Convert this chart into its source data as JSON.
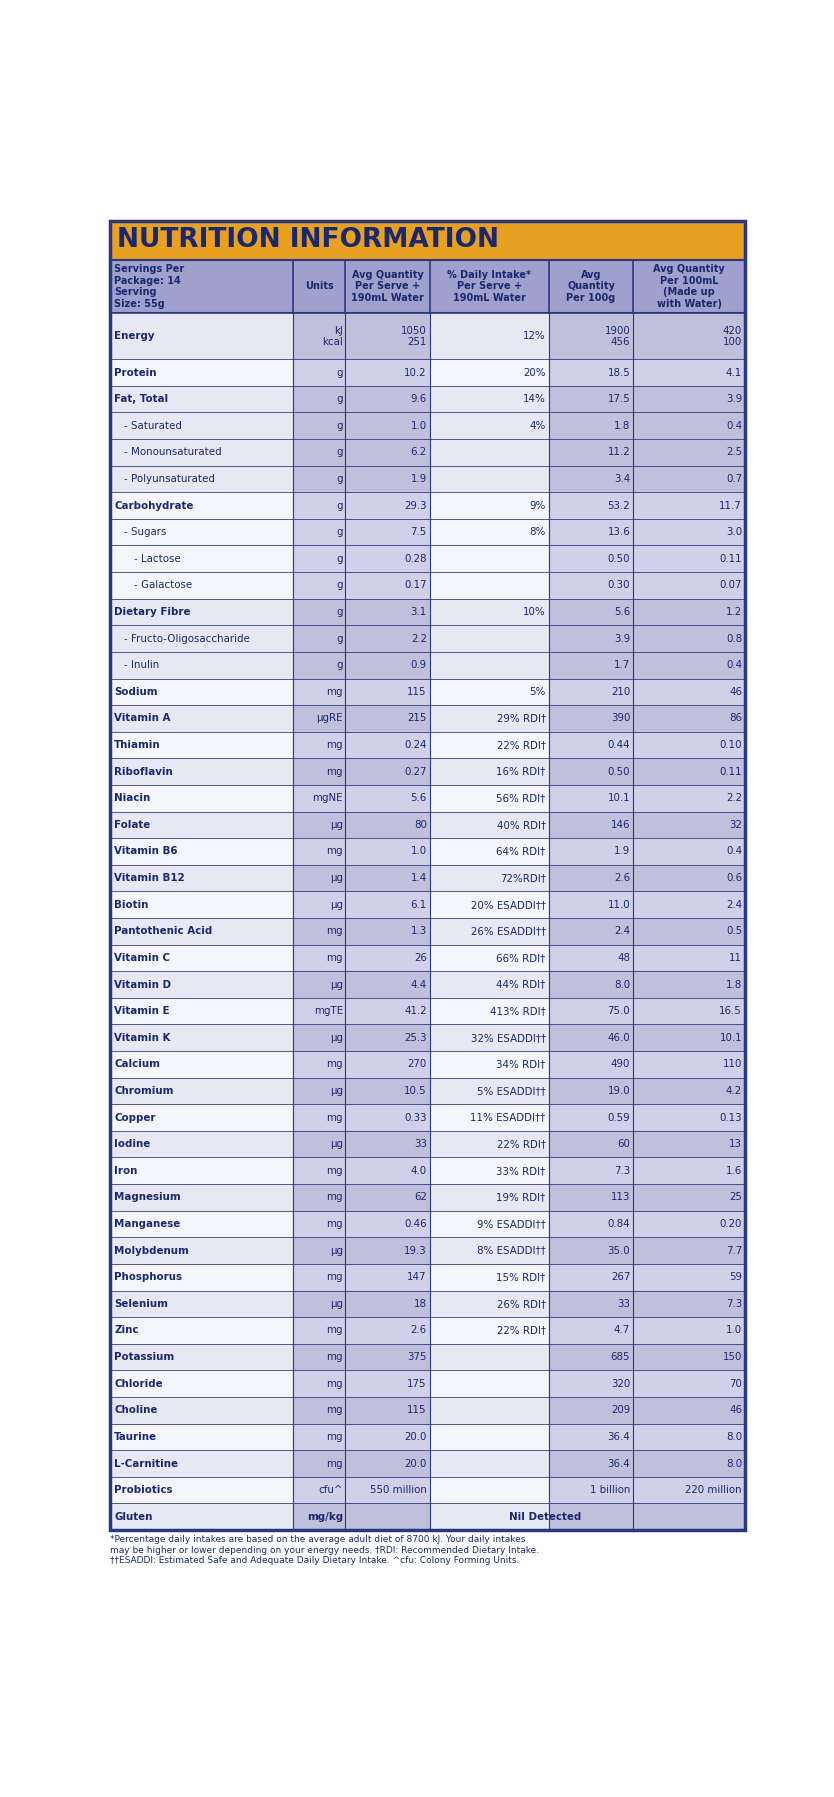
{
  "title": "NUTRITION INFORMATION",
  "title_bg": "#E8A020",
  "title_color": "#1a2870",
  "header_bg": "#a0a0cc",
  "row_bg_light": "#eeeef5",
  "row_bg_white": "#f8f8ff",
  "col_dark_light": "#b0b0d8",
  "col_dark_white": "#c8c8e8",
  "text_color": "#1a2870",
  "border_color": "#2a3880",
  "serving_info": "Servings Per\nPackage: 14\nServing\nSize: 55g",
  "col_headers": [
    "",
    "Units",
    "Avg Quantity\nPer Serve +\n190mL Water",
    "% Daily Intake*\nPer Serve +\n190mL Water",
    "Avg\nQuantity\nPer 100g",
    "Avg Quantity\nPer 100mL\n(Made up\nwith Water)"
  ],
  "rows": [
    {
      "name": "Energy",
      "indent": 0,
      "unit": "kJ\nkcal",
      "qty": "1050\n251",
      "pct": "12%",
      "per100": "1900\n456",
      "per100ml": "420\n100",
      "double": true,
      "group": 0
    },
    {
      "name": "Protein",
      "indent": 0,
      "unit": "g",
      "qty": "10.2",
      "pct": "20%",
      "per100": "18.5",
      "per100ml": "4.1",
      "double": false,
      "group": 1
    },
    {
      "name": "Fat, Total",
      "indent": 0,
      "unit": "g",
      "qty": "9.6",
      "pct": "14%",
      "per100": "17.5",
      "per100ml": "3.9",
      "double": false,
      "group": 2
    },
    {
      "name": "- Saturated",
      "indent": 1,
      "unit": "g",
      "qty": "1.0",
      "pct": "4%",
      "per100": "1.8",
      "per100ml": "0.4",
      "double": false,
      "group": 2
    },
    {
      "name": "- Monounsaturated",
      "indent": 1,
      "unit": "g",
      "qty": "6.2",
      "pct": "",
      "per100": "11.2",
      "per100ml": "2.5",
      "double": false,
      "group": 2
    },
    {
      "name": "- Polyunsaturated",
      "indent": 1,
      "unit": "g",
      "qty": "1.9",
      "pct": "",
      "per100": "3.4",
      "per100ml": "0.7",
      "double": false,
      "group": 2
    },
    {
      "name": "Carbohydrate",
      "indent": 0,
      "unit": "g",
      "qty": "29.3",
      "pct": "9%",
      "per100": "53.2",
      "per100ml": "11.7",
      "double": false,
      "group": 3
    },
    {
      "name": "- Sugars",
      "indent": 1,
      "unit": "g",
      "qty": "7.5",
      "pct": "8%",
      "per100": "13.6",
      "per100ml": "3.0",
      "double": false,
      "group": 3
    },
    {
      "name": "  - Lactose",
      "indent": 2,
      "unit": "g",
      "qty": "0.28",
      "pct": "",
      "per100": "0.50",
      "per100ml": "0.11",
      "double": false,
      "group": 3
    },
    {
      "name": "  - Galactose",
      "indent": 2,
      "unit": "g",
      "qty": "0.17",
      "pct": "",
      "per100": "0.30",
      "per100ml": "0.07",
      "double": false,
      "group": 3
    },
    {
      "name": "Dietary Fibre",
      "indent": 0,
      "unit": "g",
      "qty": "3.1",
      "pct": "10%",
      "per100": "5.6",
      "per100ml": "1.2",
      "double": false,
      "group": 4
    },
    {
      "name": "- Fructo-Oligosaccharide",
      "indent": 1,
      "unit": "g",
      "qty": "2.2",
      "pct": "",
      "per100": "3.9",
      "per100ml": "0.8",
      "double": false,
      "group": 4
    },
    {
      "name": "- Inulin",
      "indent": 1,
      "unit": "g",
      "qty": "0.9",
      "pct": "",
      "per100": "1.7",
      "per100ml": "0.4",
      "double": false,
      "group": 4
    },
    {
      "name": "Sodium",
      "indent": 0,
      "unit": "mg",
      "qty": "115",
      "pct": "5%",
      "per100": "210",
      "per100ml": "46",
      "double": false,
      "group": 5
    },
    {
      "name": "Vitamin A",
      "indent": 0,
      "unit": "μgRE",
      "qty": "215",
      "pct": "29% RDI†",
      "per100": "390",
      "per100ml": "86",
      "double": false,
      "group": 6
    },
    {
      "name": "Thiamin",
      "indent": 0,
      "unit": "mg",
      "qty": "0.24",
      "pct": "22% RDI†",
      "per100": "0.44",
      "per100ml": "0.10",
      "double": false,
      "group": 7
    },
    {
      "name": "Riboflavin",
      "indent": 0,
      "unit": "mg",
      "qty": "0.27",
      "pct": "16% RDI†",
      "per100": "0.50",
      "per100ml": "0.11",
      "double": false,
      "group": 8
    },
    {
      "name": "Niacin",
      "indent": 0,
      "unit": "mgNE",
      "qty": "5.6",
      "pct": "56% RDI†",
      "per100": "10.1",
      "per100ml": "2.2",
      "double": false,
      "group": 9
    },
    {
      "name": "Folate",
      "indent": 0,
      "unit": "μg",
      "qty": "80",
      "pct": "40% RDI†",
      "per100": "146",
      "per100ml": "32",
      "double": false,
      "group": 10
    },
    {
      "name": "Vitamin B6",
      "indent": 0,
      "unit": "mg",
      "qty": "1.0",
      "pct": "64% RDI†",
      "per100": "1.9",
      "per100ml": "0.4",
      "double": false,
      "group": 11
    },
    {
      "name": "Vitamin B12",
      "indent": 0,
      "unit": "μg",
      "qty": "1.4",
      "pct": "72%RDI†",
      "per100": "2.6",
      "per100ml": "0.6",
      "double": false,
      "group": 12
    },
    {
      "name": "Biotin",
      "indent": 0,
      "unit": "μg",
      "qty": "6.1",
      "pct": "20% ESADDI††",
      "per100": "11.0",
      "per100ml": "2.4",
      "double": false,
      "group": 13
    },
    {
      "name": "Pantothenic Acid",
      "indent": 0,
      "unit": "mg",
      "qty": "1.3",
      "pct": "26% ESADDI††",
      "per100": "2.4",
      "per100ml": "0.5",
      "double": false,
      "group": 14
    },
    {
      "name": "Vitamin C",
      "indent": 0,
      "unit": "mg",
      "qty": "26",
      "pct": "66% RDI†",
      "per100": "48",
      "per100ml": "11",
      "double": false,
      "group": 15
    },
    {
      "name": "Vitamin D",
      "indent": 0,
      "unit": "μg",
      "qty": "4.4",
      "pct": "44% RDI†",
      "per100": "8.0",
      "per100ml": "1.8",
      "double": false,
      "group": 16
    },
    {
      "name": "Vitamin E",
      "indent": 0,
      "unit": "mgTE",
      "qty": "41.2",
      "pct": "413% RDI†",
      "per100": "75.0",
      "per100ml": "16.5",
      "double": false,
      "group": 17
    },
    {
      "name": "Vitamin K",
      "indent": 0,
      "unit": "μg",
      "qty": "25.3",
      "pct": "32% ESADDI††",
      "per100": "46.0",
      "per100ml": "10.1",
      "double": false,
      "group": 18
    },
    {
      "name": "Calcium",
      "indent": 0,
      "unit": "mg",
      "qty": "270",
      "pct": "34% RDI†",
      "per100": "490",
      "per100ml": "110",
      "double": false,
      "group": 19
    },
    {
      "name": "Chromium",
      "indent": 0,
      "unit": "μg",
      "qty": "10.5",
      "pct": "5% ESADDI††",
      "per100": "19.0",
      "per100ml": "4.2",
      "double": false,
      "group": 20
    },
    {
      "name": "Copper",
      "indent": 0,
      "unit": "mg",
      "qty": "0.33",
      "pct": "11% ESADDI††",
      "per100": "0.59",
      "per100ml": "0.13",
      "double": false,
      "group": 21
    },
    {
      "name": "Iodine",
      "indent": 0,
      "unit": "μg",
      "qty": "33",
      "pct": "22% RDI†",
      "per100": "60",
      "per100ml": "13",
      "double": false,
      "group": 22
    },
    {
      "name": "Iron",
      "indent": 0,
      "unit": "mg",
      "qty": "4.0",
      "pct": "33% RDI†",
      "per100": "7.3",
      "per100ml": "1.6",
      "double": false,
      "group": 23
    },
    {
      "name": "Magnesium",
      "indent": 0,
      "unit": "mg",
      "qty": "62",
      "pct": "19% RDI†",
      "per100": "113",
      "per100ml": "25",
      "double": false,
      "group": 24
    },
    {
      "name": "Manganese",
      "indent": 0,
      "unit": "mg",
      "qty": "0.46",
      "pct": "9% ESADDI††",
      "per100": "0.84",
      "per100ml": "0.20",
      "double": false,
      "group": 25
    },
    {
      "name": "Molybdenum",
      "indent": 0,
      "unit": "μg",
      "qty": "19.3",
      "pct": "8% ESADDI††",
      "per100": "35.0",
      "per100ml": "7.7",
      "double": false,
      "group": 26
    },
    {
      "name": "Phosphorus",
      "indent": 0,
      "unit": "mg",
      "qty": "147",
      "pct": "15% RDI†",
      "per100": "267",
      "per100ml": "59",
      "double": false,
      "group": 27
    },
    {
      "name": "Selenium",
      "indent": 0,
      "unit": "μg",
      "qty": "18",
      "pct": "26% RDI†",
      "per100": "33",
      "per100ml": "7.3",
      "double": false,
      "group": 28
    },
    {
      "name": "Zinc",
      "indent": 0,
      "unit": "mg",
      "qty": "2.6",
      "pct": "22% RDI†",
      "per100": "4.7",
      "per100ml": "1.0",
      "double": false,
      "group": 29
    },
    {
      "name": "Potassium",
      "indent": 0,
      "unit": "mg",
      "qty": "375",
      "pct": "",
      "per100": "685",
      "per100ml": "150",
      "double": false,
      "group": 30
    },
    {
      "name": "Chloride",
      "indent": 0,
      "unit": "mg",
      "qty": "175",
      "pct": "",
      "per100": "320",
      "per100ml": "70",
      "double": false,
      "group": 31
    },
    {
      "name": "Choline",
      "indent": 0,
      "unit": "mg",
      "qty": "115",
      "pct": "",
      "per100": "209",
      "per100ml": "46",
      "double": false,
      "group": 32
    },
    {
      "name": "Taurine",
      "indent": 0,
      "unit": "mg",
      "qty": "20.0",
      "pct": "",
      "per100": "36.4",
      "per100ml": "8.0",
      "double": false,
      "group": 33
    },
    {
      "name": "L-Carnitine",
      "indent": 0,
      "unit": "mg",
      "qty": "20.0",
      "pct": "",
      "per100": "36.4",
      "per100ml": "8.0",
      "double": false,
      "group": 34
    },
    {
      "name": "Probiotics",
      "indent": 0,
      "unit": "cfu^",
      "qty": "550 million",
      "pct": "",
      "per100": "1 billion",
      "per100ml": "220 million",
      "double": false,
      "group": 35
    },
    {
      "name": "Gluten",
      "indent": 0,
      "unit": "mg/kg",
      "qty": "",
      "pct": "Nil Detected",
      "per100": "",
      "per100ml": "",
      "double": false,
      "group": 36,
      "span_cols": true
    }
  ],
  "footnote": "*Percentage daily intakes are based on the average adult diet of 8700 kJ. Your daily intakes\nmay be higher or lower depending on your energy needs. †RDI: Recommended Dietary Intake.\n††ESADDI: Estimated Safe and Adequate Daily Dietary Intake. ^cfu: Colony Forming Units."
}
